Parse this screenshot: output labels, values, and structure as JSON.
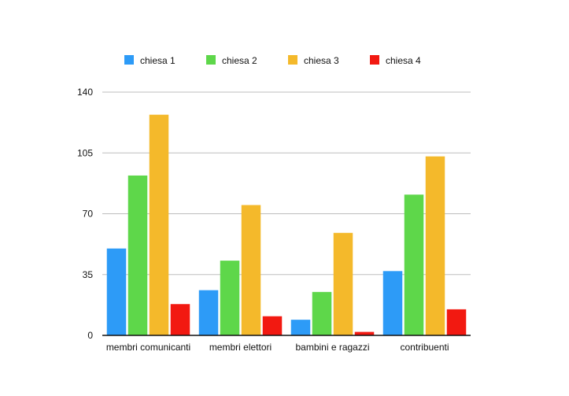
{
  "chart_data": {
    "type": "bar",
    "categories": [
      "membri comunicanti",
      "membri elettori",
      "bambini e ragazzi",
      "contribuenti"
    ],
    "series": [
      {
        "name": "chiesa 1",
        "color": "#2d9bf7",
        "values": [
          50,
          26,
          9,
          37
        ]
      },
      {
        "name": "chiesa 2",
        "color": "#5ed74a",
        "values": [
          92,
          43,
          25,
          81
        ]
      },
      {
        "name": "chiesa 3",
        "color": "#f4b92b",
        "values": [
          127,
          75,
          59,
          103
        ]
      },
      {
        "name": "chiesa 4",
        "color": "#f21911",
        "values": [
          18,
          11,
          2,
          15
        ]
      }
    ],
    "ylim": [
      0,
      140
    ],
    "yticks": [
      0,
      35,
      70,
      105,
      140
    ],
    "grid": true,
    "legend_position": "top"
  }
}
